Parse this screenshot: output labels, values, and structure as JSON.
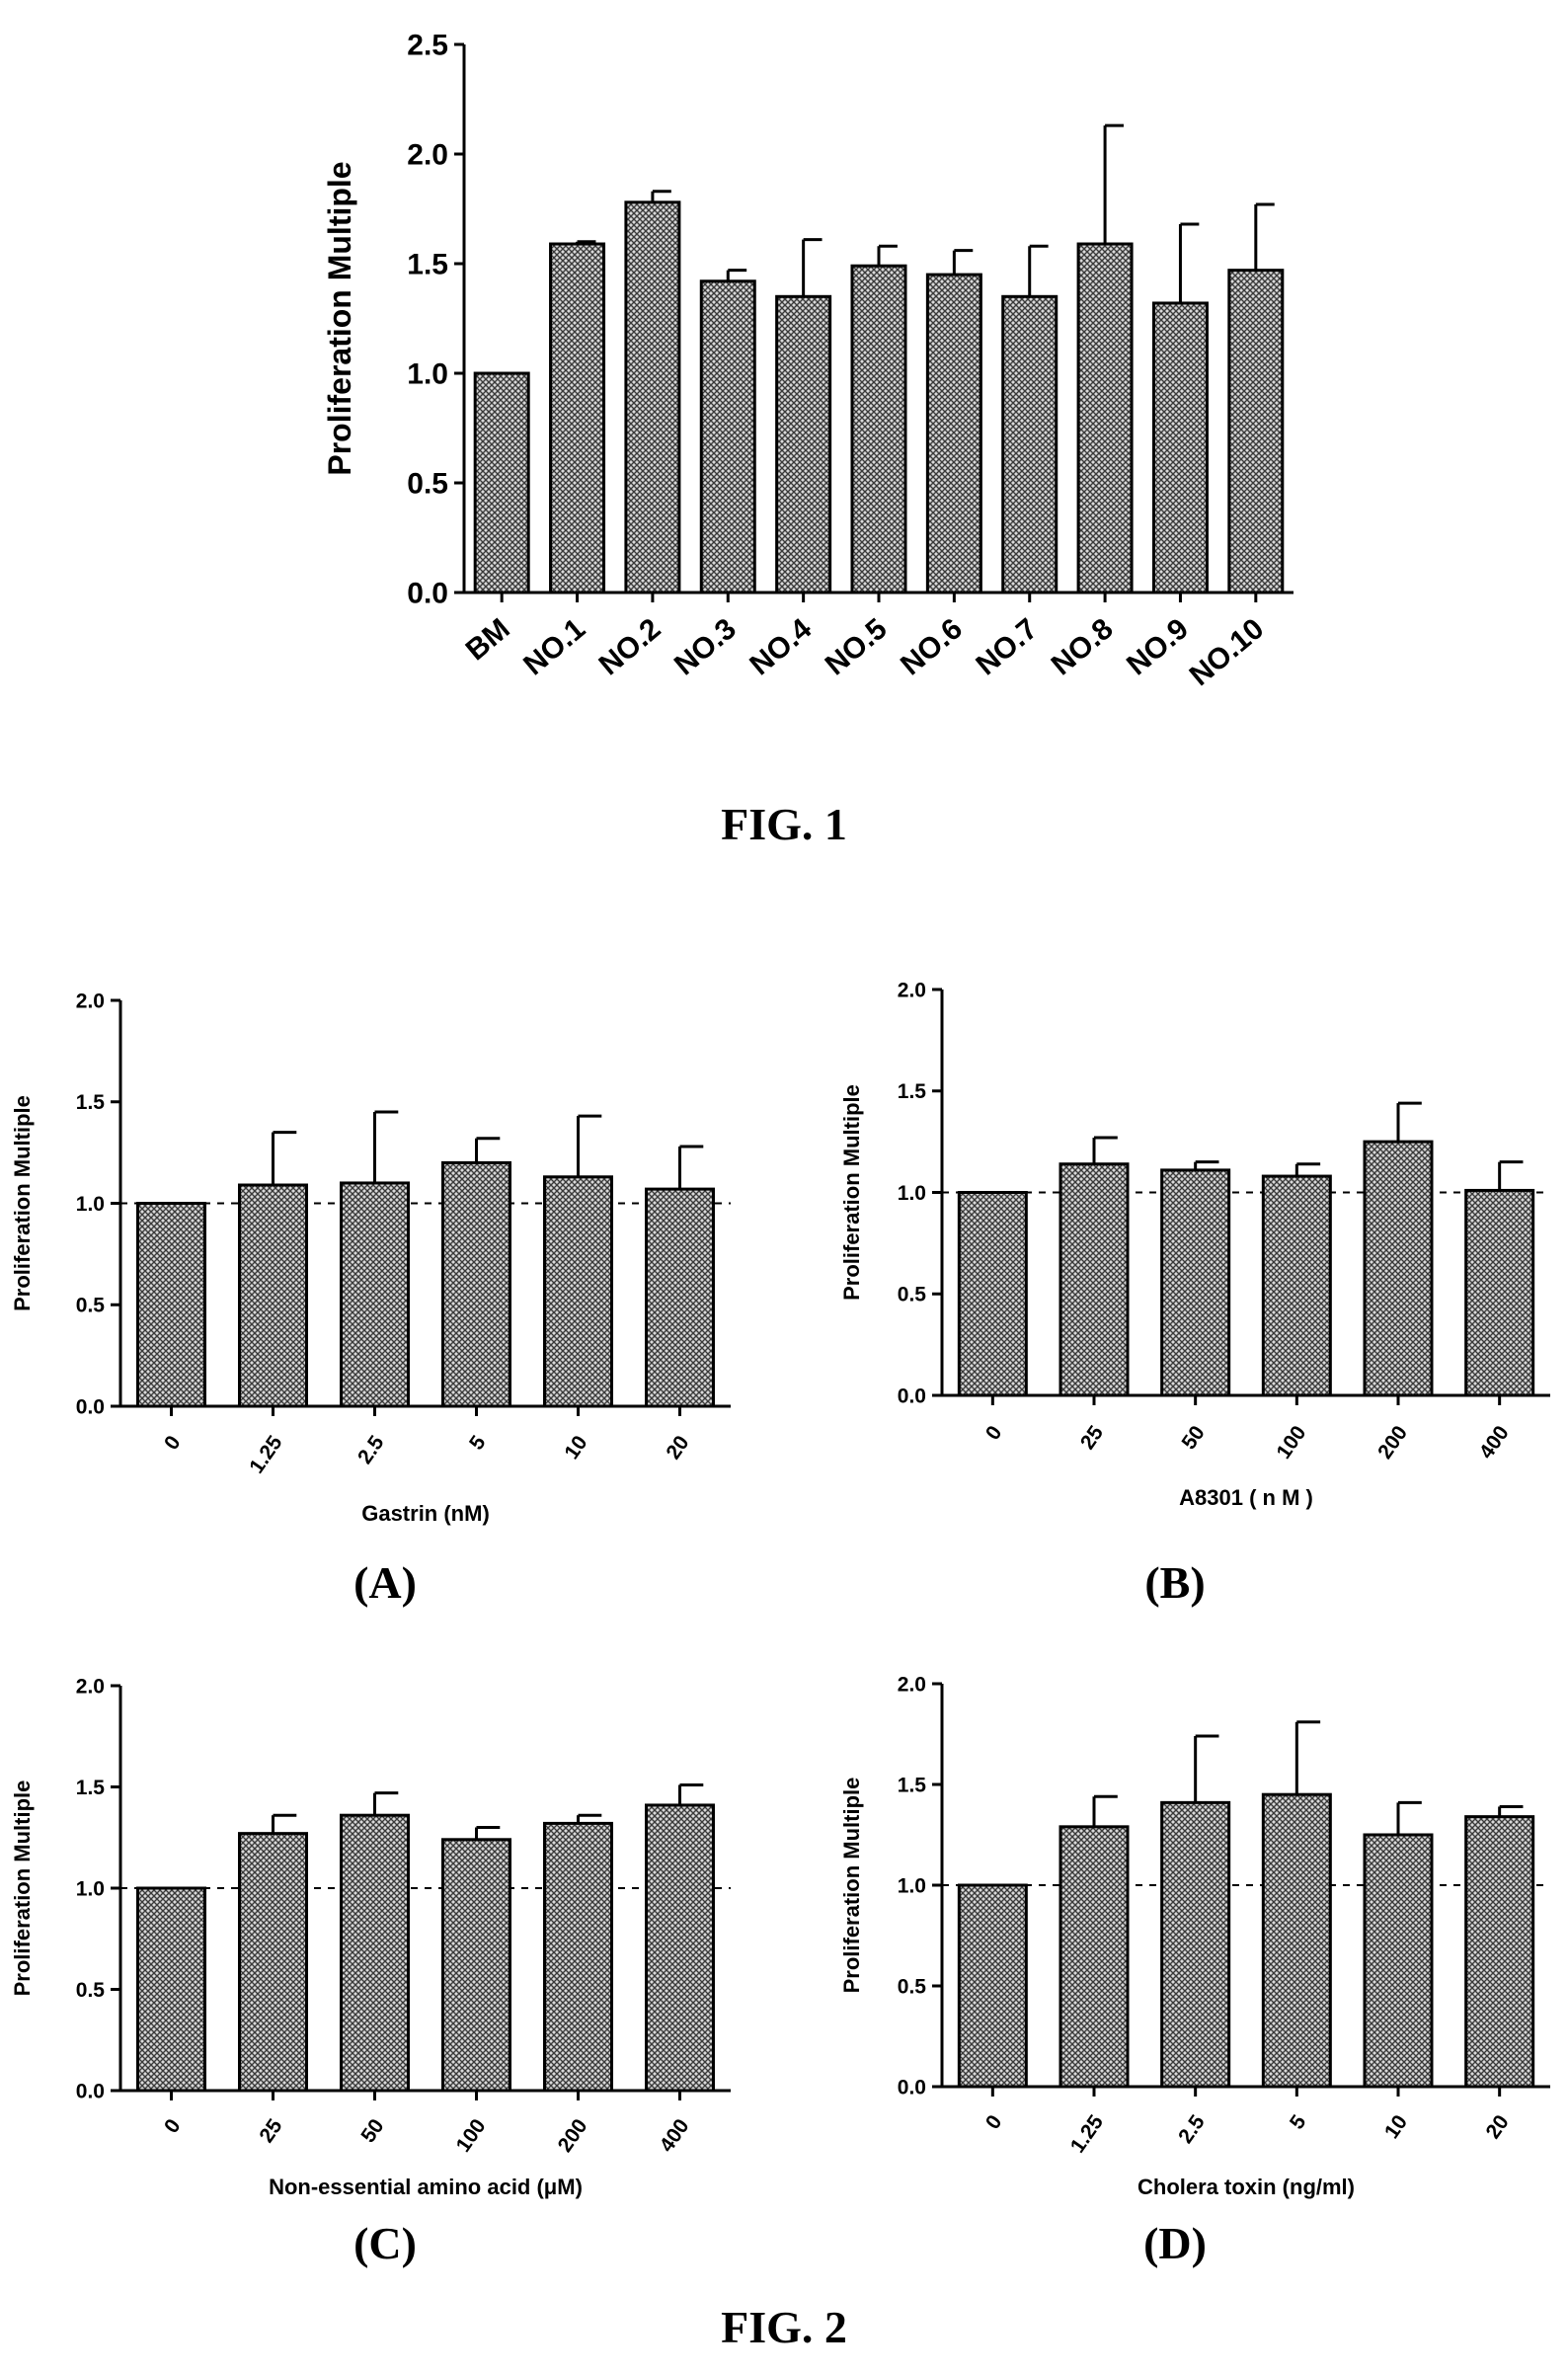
{
  "captions": {
    "fig1": "FIG. 1",
    "fig2": "FIG. 2",
    "panelA": "(A)",
    "panelB": "(B)",
    "panelC": "(C)",
    "panelD": "(D)"
  },
  "colors": {
    "bar_fill": "#8a8a8a",
    "axis": "#000000",
    "reference_line": "#000000"
  },
  "chart_data": [
    {
      "id": "fig1",
      "type": "bar",
      "title": "",
      "xlabel": "",
      "ylabel": "Proliferation Multiple",
      "ylim": [
        0,
        2.5
      ],
      "yticks": [
        "0.0",
        "0.5",
        "1.0",
        "1.5",
        "2.0",
        "2.5"
      ],
      "categories": [
        "BM",
        "NO.1",
        "NO.2",
        "NO.3",
        "NO.4",
        "NO.5",
        "NO.6",
        "NO.7",
        "NO.8",
        "NO.9",
        "NO.10"
      ],
      "values": [
        1.0,
        1.59,
        1.78,
        1.42,
        1.35,
        1.49,
        1.45,
        1.35,
        1.59,
        1.32,
        1.47
      ],
      "errors": [
        0.0,
        0.01,
        0.05,
        0.05,
        0.26,
        0.09,
        0.11,
        0.23,
        0.54,
        0.36,
        0.3
      ],
      "reference_line": null,
      "grid": false,
      "bar_pattern": "crosshatch"
    },
    {
      "id": "fig2A",
      "type": "bar",
      "title": "",
      "xlabel": "Gastrin (nM)",
      "ylabel": "Proliferation Multiple",
      "ylim": [
        0,
        2.0
      ],
      "yticks": [
        "0.0",
        "0.5",
        "1.0",
        "1.5",
        "2.0"
      ],
      "categories": [
        "0",
        "1.25",
        "2.5",
        "5",
        "10",
        "20"
      ],
      "values": [
        1.0,
        1.09,
        1.1,
        1.2,
        1.13,
        1.07
      ],
      "errors": [
        0.0,
        0.26,
        0.35,
        0.12,
        0.3,
        0.21
      ],
      "reference_line": 1.0,
      "grid": false
    },
    {
      "id": "fig2B",
      "type": "bar",
      "title": "",
      "xlabel": "A8301 ( n M )",
      "ylabel": "Proliferation Multiple",
      "ylim": [
        0,
        2.0
      ],
      "yticks": [
        "0.0",
        "0.5",
        "1.0",
        "1.5",
        "2.0"
      ],
      "categories": [
        "0",
        "25",
        "50",
        "100",
        "200",
        "400"
      ],
      "values": [
        1.0,
        1.14,
        1.11,
        1.08,
        1.25,
        1.01
      ],
      "errors": [
        0.0,
        0.13,
        0.04,
        0.06,
        0.19,
        0.14
      ],
      "reference_line": 1.0,
      "grid": false
    },
    {
      "id": "fig2C",
      "type": "bar",
      "title": "",
      "xlabel": "Non-essential amino acid (μM)",
      "ylabel": "Proliferation Multiple",
      "ylim": [
        0,
        2.0
      ],
      "yticks": [
        "0.0",
        "0.5",
        "1.0",
        "1.5",
        "2.0"
      ],
      "categories": [
        "0",
        "25",
        "50",
        "100",
        "200",
        "400"
      ],
      "values": [
        1.0,
        1.27,
        1.36,
        1.24,
        1.32,
        1.41
      ],
      "errors": [
        0.0,
        0.09,
        0.11,
        0.06,
        0.04,
        0.1
      ],
      "reference_line": 1.0,
      "grid": false
    },
    {
      "id": "fig2D",
      "type": "bar",
      "title": "",
      "xlabel": "Cholera toxin (ng/ml)",
      "ylabel": "Proliferation Multiple",
      "ylim": [
        0,
        2.0
      ],
      "yticks": [
        "0.0",
        "0.5",
        "1.0",
        "1.5",
        "2.0"
      ],
      "categories": [
        "0",
        "1.25",
        "2.5",
        "5",
        "10",
        "20"
      ],
      "values": [
        1.0,
        1.29,
        1.41,
        1.45,
        1.25,
        1.34
      ],
      "errors": [
        0.0,
        0.15,
        0.33,
        0.36,
        0.16,
        0.05
      ],
      "reference_line": 1.0,
      "grid": false
    }
  ]
}
